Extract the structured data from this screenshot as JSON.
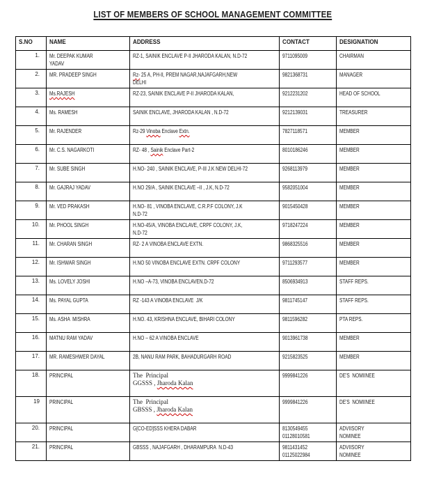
{
  "page": {
    "title": "LIST OF MEMBERS OF SCHOOL MANAGEMENT COMMITTEE",
    "colors": {
      "ink": "#1f1f1f",
      "border": "#000000",
      "squiggle": "#cc0000",
      "background": "#ffffff"
    }
  },
  "table": {
    "headers": [
      "S.NO",
      "NAME",
      "ADDRESS",
      "CONTACT",
      "DESIGNATION"
    ],
    "rows": [
      {
        "sno": "1.",
        "name": [
          [
            "Mr. DEEPAK KUMAR"
          ],
          [
            "YADAV"
          ]
        ],
        "address": {
          "serif": false,
          "lines": [
            [
              "RZ-1, SAINIK ENCLAVE P-II JHARODA KALAN, N.D-72"
            ]
          ]
        },
        "contact": [
          "9711095009"
        ],
        "designation": [
          "CHAIRMAN"
        ]
      },
      {
        "sno": "2.",
        "name": [
          [
            "MR. PRADEEP SINGH"
          ]
        ],
        "address": {
          "serif": false,
          "lines": [
            [
              {
                "t": "Rz-",
                "w": 1
              },
              {
                "t": " 25 A, PH-II, PREM NAGAR,NAJAFGARH,NEW"
              }
            ],
            [
              "DELHI"
            ]
          ]
        },
        "contact": [
          "9821368731"
        ],
        "designation": [
          "MANAGER"
        ]
      },
      {
        "sno": "3.",
        "name": [
          [
            {
              "t": "Ms.RAJESH",
              "w": 1
            }
          ]
        ],
        "address": {
          "serif": false,
          "lines": [
            [
              "RZ-23, SAINIK ENCLAVE P-II JHARODA KALAN,"
            ]
          ]
        },
        "contact": [
          "9212231202"
        ],
        "designation": [
          "HEAD OF SCHOOL"
        ]
      },
      {
        "sno": "4.",
        "name": [
          [
            "Ms. RAMESH"
          ]
        ],
        "address": {
          "serif": false,
          "lines": [
            [
              "SAINIK ENCLAVE, JHARODA KALAN , N.D-72"
            ]
          ]
        },
        "contact": [
          "9212139031"
        ],
        "designation": [
          "TREASURER"
        ]
      },
      {
        "sno": "5.",
        "name": [
          [
            "Mr. RAJENDER"
          ]
        ],
        "address": {
          "serif": false,
          "lines": [
            [
              {
                "t": "Rz-29 "
              },
              {
                "t": "Vinoba",
                "w": 1
              },
              {
                "t": " Enclave "
              },
              {
                "t": "Extn.",
                "w": 1
              }
            ]
          ]
        },
        "contact": [
          "7827118571"
        ],
        "designation": [
          "MEMBER"
        ]
      },
      {
        "sno": "6.",
        "name": [
          [
            "Mr. C.S. NAGARKOTI"
          ]
        ],
        "address": {
          "serif": false,
          "lines": [
            [
              {
                "t": "RZ- 48 , "
              },
              {
                "t": "Sainik",
                "w": 1
              },
              {
                "t": " Enclave Part-2"
              }
            ]
          ]
        },
        "contact": [
          "8010186246"
        ],
        "designation": [
          "MEMBER"
        ]
      },
      {
        "sno": "7.",
        "name": [
          [
            "Mr. SUBE SINGH"
          ]
        ],
        "address": {
          "serif": false,
          "lines": [
            [
              "H.NO- 240 , SAINIK ENCLAVE, P-III J.K NEW DELHI-72"
            ]
          ]
        },
        "contact": [
          "9268113979"
        ],
        "designation": [
          "MEMBER"
        ]
      },
      {
        "sno": "8.",
        "name": [
          [
            "Mr. GAJRAJ YADAV"
          ]
        ],
        "address": {
          "serif": false,
          "lines": [
            [
              "H.NO 29/A , SAINIK ENCLAVE –II , J.K, N.D-72"
            ]
          ]
        },
        "contact": [
          "9582051004"
        ],
        "designation": [
          "MEMBER"
        ]
      },
      {
        "sno": "9.",
        "name": [
          [
            "Mr. VED PRAKASH"
          ]
        ],
        "address": {
          "serif": false,
          "lines": [
            [
              "H.NO- 81 , VINOBA ENCLAVE, C.R.P.F COLONY, J.K"
            ],
            [
              "N.D-72"
            ]
          ]
        },
        "contact": [
          "9015450428"
        ],
        "designation": [
          "MEMBER"
        ]
      },
      {
        "sno": "10.",
        "name": [
          [
            "Mr. PHOOL SINGH"
          ]
        ],
        "address": {
          "serif": false,
          "lines": [
            [
              "H.NO-45/A, VINOBA ENCLAVE, CRPF COLONY, J.K,"
            ],
            [
              "N.D-72"
            ]
          ]
        },
        "contact": [
          "9718247224"
        ],
        "designation": [
          "MEMBER"
        ]
      },
      {
        "sno": "11.",
        "name": [
          [
            "Mr. CHARAN SINGH"
          ]
        ],
        "address": {
          "serif": false,
          "lines": [
            [
              "RZ- 2 A VINOBA ENCLAVE EXTN."
            ]
          ]
        },
        "contact": [
          "9868325516"
        ],
        "designation": [
          "MEMBER"
        ]
      },
      {
        "sno": "12.",
        "name": [
          [
            "Mr. ISHWAR SINGH"
          ]
        ],
        "address": {
          "serif": false,
          "lines": [
            [
              "H.NO 50 VINOBA ENCLAVE EXTN. CRPF COLONY"
            ]
          ]
        },
        "contact": [
          "9711293577"
        ],
        "designation": [
          "MEMBER"
        ]
      },
      {
        "sno": "13.",
        "name": [
          [
            "Ms. LOVELY JOSHI"
          ]
        ],
        "address": {
          "serif": false,
          "lines": [
            [
              "H.NO –A-73, VINOBA ENCLAVEN.D-72"
            ]
          ]
        },
        "contact": [
          "8506934913"
        ],
        "designation": [
          "STAFF REPS."
        ]
      },
      {
        "sno": "14.",
        "name": [
          [
            "Ms. PAYAL GUPTA"
          ]
        ],
        "address": {
          "serif": false,
          "lines": [
            [
              "RZ -143 A VINOBA ENCLAVE  J/K"
            ]
          ]
        },
        "contact": [
          "9811745147"
        ],
        "designation": [
          "STAFF REPS."
        ]
      },
      {
        "sno": "15.",
        "name": [
          [
            "Ms. ASHA  MISHRA"
          ]
        ],
        "address": {
          "serif": false,
          "lines": [
            [
              "H.NO. 43, KRISHNA ENCLAVE, BIHARI COLONY"
            ]
          ]
        },
        "contact": [
          "9811596282"
        ],
        "designation": [
          "PTA REPS."
        ]
      },
      {
        "sno": "16.",
        "name": [
          [
            "MATNU RAM YADAV"
          ]
        ],
        "address": {
          "serif": false,
          "lines": [
            [
              "H.NO – 62 A VINOBA ENCLAVE"
            ]
          ]
        },
        "contact": [
          "9013961738"
        ],
        "designation": [
          "MEMBER"
        ]
      },
      {
        "sno": "17.",
        "name": [
          [
            "MR. RAMESHWER DAYAL"
          ]
        ],
        "address": {
          "serif": false,
          "lines": [
            [
              "2B, NANU RAM PARK, BAHADURGARH ROAD"
            ]
          ]
        },
        "contact": [
          "9215823525"
        ],
        "designation": [
          "MEMBER"
        ]
      },
      {
        "sno": "18.",
        "name": [
          [
            "PRINCIPAL"
          ]
        ],
        "address": {
          "serif": true,
          "lines": [
            [
              "The  Principal"
            ],
            [
              {
                "t": "GGSSS , "
              },
              {
                "t": "Jharoda Kalan",
                "w": 1
              }
            ]
          ]
        },
        "contact": [
          "9999841226"
        ],
        "designation": [
          "DE'S  NOMIINEE"
        ]
      },
      {
        "sno": "19",
        "name": [
          [
            "PRINCIPAL"
          ]
        ],
        "address": {
          "serif": true,
          "lines": [
            [
              "The  Principal"
            ],
            [
              {
                "t": "GBSSS , "
              },
              {
                "t": "Jharoda Kalan",
                "w": 1
              }
            ]
          ]
        },
        "contact": [
          "9999841226"
        ],
        "designation": [
          "DE'S  NOMIINEE"
        ]
      },
      {
        "sno": "20.",
        "name": [
          [
            "PRINCIPAL"
          ]
        ],
        "address": {
          "serif": false,
          "lines": [
            [
              "G[CO-ED]SSS KHERA DABAR"
            ]
          ]
        },
        "contact": [
          "8130549455",
          "01128010581"
        ],
        "designation": [
          "ADVIISORY",
          "NOMINEE"
        ]
      },
      {
        "sno": "21.",
        "name": [
          [
            "PRINCIPAL"
          ]
        ],
        "address": {
          "serif": false,
          "lines": [
            [
              "GBSSS , NAJAFGARH , DHARAMPURA  N.D-43"
            ]
          ]
        },
        "contact": [
          "9811431452",
          "01125022984"
        ],
        "designation": [
          "ADVIISORY",
          "NOMINEE"
        ]
      }
    ]
  }
}
